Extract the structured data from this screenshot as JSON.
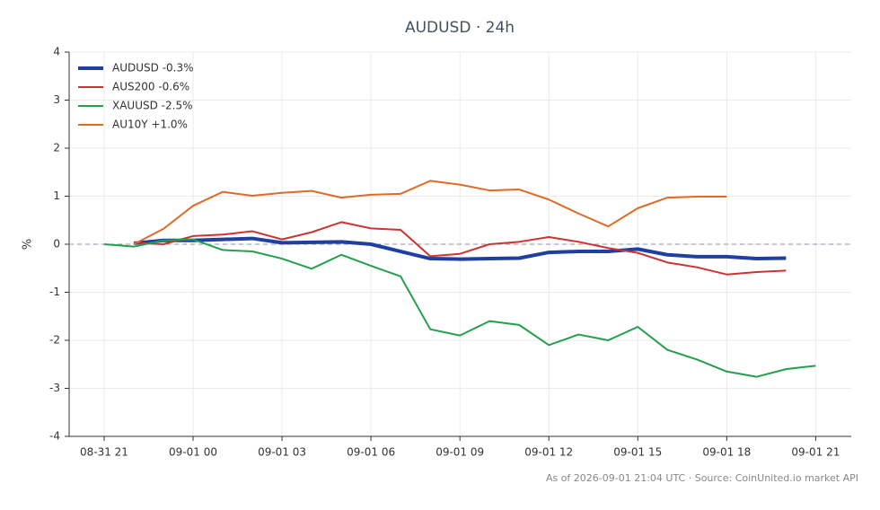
{
  "chart_data": {
    "type": "line",
    "title": "AUDUSD · 24h",
    "y_label": "%",
    "footnote": "As of 2026-09-01 21:04 UTC · Source: CoinUnited.io market API",
    "x": [
      0,
      1,
      2,
      3,
      4,
      5,
      6,
      7,
      8,
      9,
      10,
      11,
      12,
      13,
      14,
      15,
      16,
      17,
      18,
      19,
      20,
      21,
      22,
      23,
      24
    ],
    "xlim": [
      -1.18,
      25.2
    ],
    "xticks": [
      {
        "value": 0,
        "label": "08-31 21"
      },
      {
        "value": 3,
        "label": "09-01 00"
      },
      {
        "value": 6,
        "label": "09-01 03"
      },
      {
        "value": 9,
        "label": "09-01 06"
      },
      {
        "value": 12,
        "label": "09-01 09"
      },
      {
        "value": 15,
        "label": "09-01 12"
      },
      {
        "value": 18,
        "label": "09-01 15"
      },
      {
        "value": 21,
        "label": "09-01 18"
      },
      {
        "value": 24,
        "label": "09-01 21"
      }
    ],
    "ylim": [
      -4,
      4
    ],
    "yticks": [
      -4,
      -3,
      -2,
      -1,
      0,
      1,
      2,
      3,
      4
    ],
    "grid": true,
    "reference_line": 0,
    "legend": "upper-left",
    "series": [
      {
        "name": "AUDUSD -0.3%",
        "color": "#1f3fa3",
        "width": 4,
        "values": [
          null,
          0.02,
          0.08,
          0.08,
          0.1,
          0.12,
          0.03,
          0.04,
          0.05,
          0.0,
          -0.15,
          -0.3,
          -0.31,
          -0.3,
          -0.29,
          -0.17,
          -0.15,
          -0.15,
          -0.1,
          -0.22,
          -0.26,
          -0.26,
          -0.3,
          -0.29,
          null
        ]
      },
      {
        "name": "AUS200 -0.6%",
        "color": "#cc3333",
        "width": 2,
        "values": [
          null,
          0.03,
          0.0,
          0.17,
          0.2,
          0.27,
          0.1,
          0.25,
          0.46,
          0.33,
          0.3,
          -0.25,
          -0.2,
          0.0,
          0.05,
          0.15,
          0.05,
          -0.08,
          -0.18,
          -0.38,
          -0.48,
          -0.63,
          -0.58,
          -0.55,
          null
        ]
      },
      {
        "name": "XAUUSD -2.5%",
        "color": "#22a04b",
        "width": 2,
        "values": [
          0.0,
          -0.05,
          0.08,
          0.1,
          -0.12,
          -0.15,
          -0.3,
          -0.51,
          -0.22,
          -0.45,
          -0.67,
          -1.77,
          -1.9,
          -1.6,
          -1.68,
          -2.1,
          -1.88,
          -2.0,
          -1.72,
          -2.2,
          -2.4,
          -2.65,
          -2.76,
          -2.6,
          -2.53
        ]
      },
      {
        "name": "AU10Y +1.0%",
        "color": "#e06a26",
        "width": 2,
        "values": [
          null,
          0.0,
          0.32,
          0.8,
          1.09,
          1.01,
          1.07,
          1.11,
          0.97,
          1.03,
          1.05,
          1.32,
          1.24,
          1.12,
          1.14,
          0.93,
          0.64,
          0.37,
          0.75,
          0.97,
          0.99,
          0.99,
          null,
          null,
          null
        ]
      }
    ]
  }
}
